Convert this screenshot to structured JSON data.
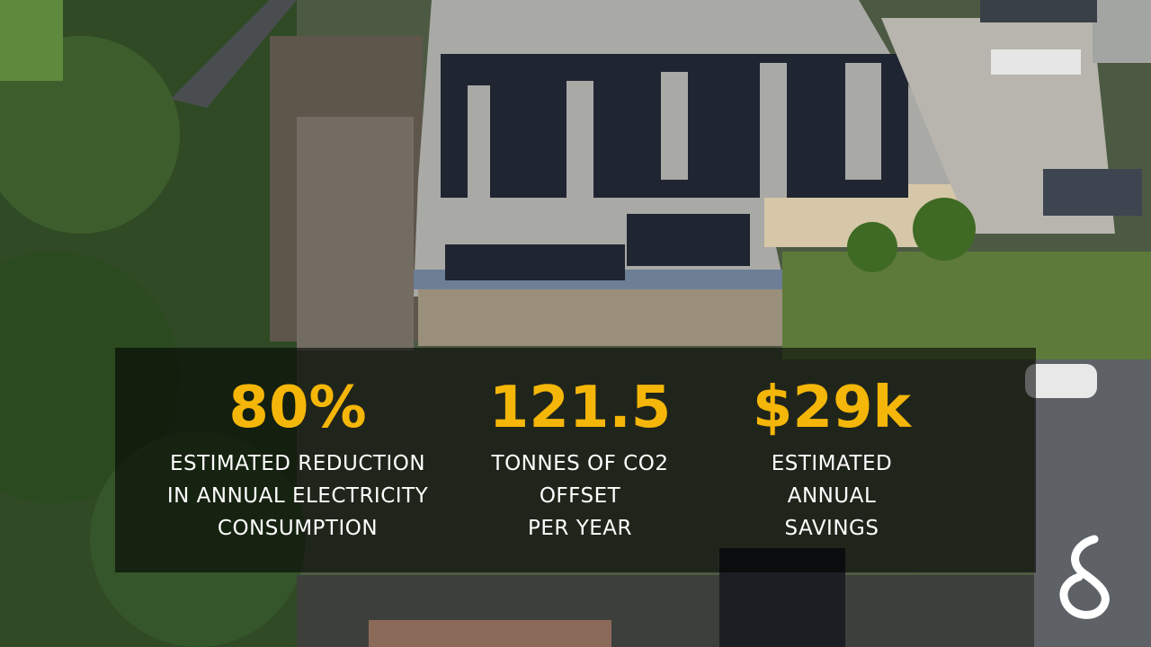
{
  "stats": [
    {
      "value": "80%",
      "lines": [
        "ESTIMATED REDUCTION",
        "IN ANNUAL ELECTRICITY",
        "CONSUMPTION"
      ]
    },
    {
      "value": "121.5",
      "lines": [
        "TONNES OF CO2",
        "OFFSET",
        "PER YEAR"
      ]
    },
    {
      "value": "$29k",
      "lines": [
        "ESTIMATED",
        "ANNUAL",
        "SAVINGS"
      ]
    }
  ]
}
